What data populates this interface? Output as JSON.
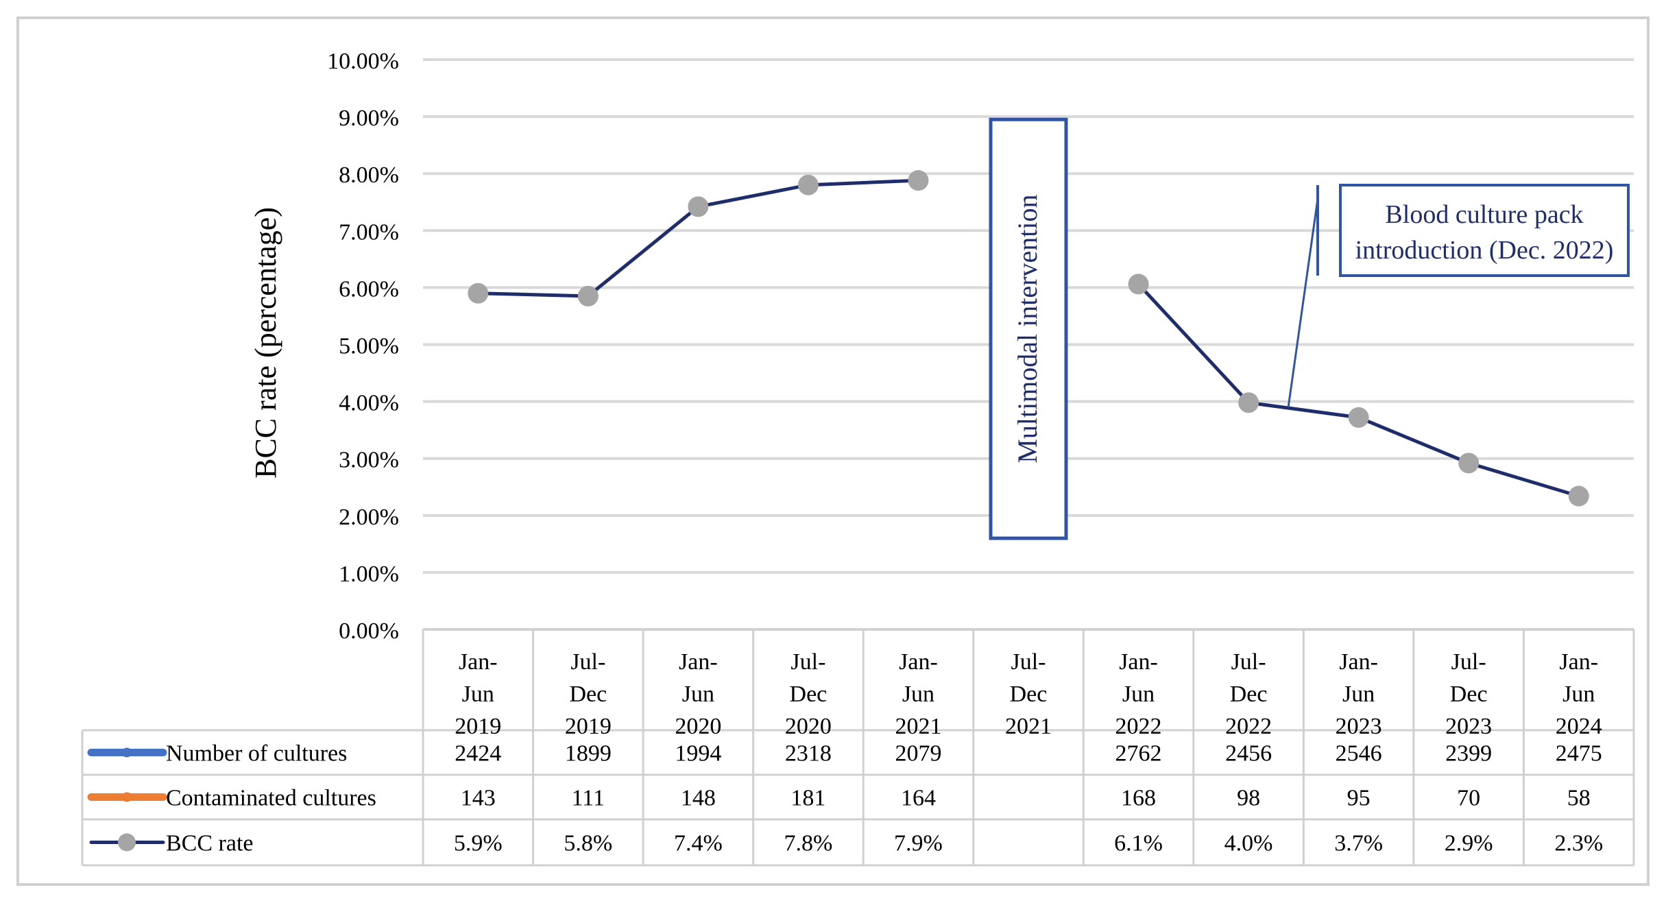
{
  "chart_data": {
    "type": "line",
    "title": "",
    "xlabel": "",
    "ylabel": "BCC rate (percentage)",
    "ylim": [
      0,
      10
    ],
    "y_tick_values": [
      0,
      1,
      2,
      3,
      4,
      5,
      6,
      7,
      8,
      9,
      10
    ],
    "y_tick_labels": [
      "0.00%",
      "1.00%",
      "2.00%",
      "3.00%",
      "4.00%",
      "5.00%",
      "6.00%",
      "7.00%",
      "8.00%",
      "9.00%",
      "10.00%"
    ],
    "categories": [
      [
        "Jan-",
        "Jun",
        "2019"
      ],
      [
        "Jul-",
        "Dec",
        "2019"
      ],
      [
        "Jan-",
        "Jun",
        "2020"
      ],
      [
        "Jul-",
        "Dec",
        "2020"
      ],
      [
        "Jan-",
        "Jun",
        "2021"
      ],
      [
        "Jul-",
        "Dec",
        "2021"
      ],
      [
        "Jan-",
        "Jun",
        "2022"
      ],
      [
        "Jul-",
        "Dec",
        "2022"
      ],
      [
        "Jan-",
        "Jun",
        "2023"
      ],
      [
        "Jul-",
        "Dec",
        "2023"
      ],
      [
        "Jan-",
        "Jun",
        "2024"
      ]
    ],
    "series": [
      {
        "name": "Number of cultures",
        "color": "#4472c4",
        "plotted": false,
        "table_values": [
          "2424",
          "1899",
          "1994",
          "2318",
          "2079",
          "",
          "2762",
          "2456",
          "2546",
          "2399",
          "2475"
        ]
      },
      {
        "name": "Contaminated cultures",
        "color": "#ed7d31",
        "plotted": false,
        "table_values": [
          "143",
          "111",
          "148",
          "181",
          "164",
          "",
          "168",
          "98",
          "95",
          "70",
          "58"
        ]
      },
      {
        "name": "BCC rate",
        "color": "#1f2d6b",
        "marker_color": "#a5a5a5",
        "plotted": true,
        "values": [
          5.9,
          5.85,
          7.42,
          7.8,
          7.88,
          null,
          6.06,
          3.98,
          3.72,
          2.92,
          2.34
        ],
        "table_values": [
          "5.9%",
          "5.8%",
          "7.4%",
          "7.8%",
          "7.9%",
          "",
          "6.1%",
          "4.0%",
          "3.7%",
          "2.9%",
          "2.3%"
        ]
      }
    ],
    "annotations": [
      {
        "text": "Multimodal intervention",
        "category_index": 5,
        "orientation": "vertical",
        "box_range": [
          1.6,
          8.95
        ]
      },
      {
        "text_lines": [
          "Blood culture pack",
          "introduction (Dec. 2022)"
        ],
        "points_to_category_index": 7,
        "points_to_value": 3.9
      }
    ],
    "gridlines": true,
    "legend": "data-table"
  }
}
